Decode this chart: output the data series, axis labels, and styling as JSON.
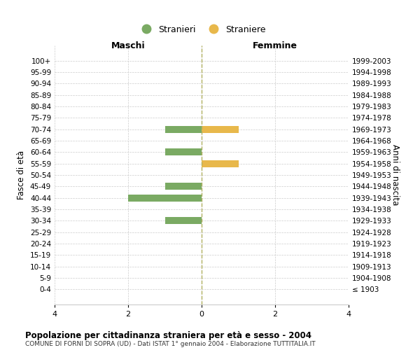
{
  "age_groups": [
    "100+",
    "95-99",
    "90-94",
    "85-89",
    "80-84",
    "75-79",
    "70-74",
    "65-69",
    "60-64",
    "55-59",
    "50-54",
    "45-49",
    "40-44",
    "35-39",
    "30-34",
    "25-29",
    "20-24",
    "15-19",
    "10-14",
    "5-9",
    "0-4"
  ],
  "birth_years": [
    "≤ 1903",
    "1904-1908",
    "1909-1913",
    "1914-1918",
    "1919-1923",
    "1924-1928",
    "1929-1933",
    "1934-1938",
    "1939-1943",
    "1944-1948",
    "1949-1953",
    "1954-1958",
    "1959-1963",
    "1964-1968",
    "1969-1973",
    "1974-1978",
    "1979-1983",
    "1984-1988",
    "1989-1993",
    "1994-1998",
    "1999-2003"
  ],
  "males": [
    0,
    0,
    0,
    0,
    0,
    0,
    -1,
    0,
    -1,
    0,
    0,
    -1,
    -2,
    0,
    -1,
    0,
    0,
    0,
    0,
    0,
    0
  ],
  "females": [
    0,
    0,
    0,
    0,
    0,
    0,
    1,
    0,
    0,
    1,
    0,
    0,
    0,
    0,
    0,
    0,
    0,
    0,
    0,
    0,
    0
  ],
  "male_color": "#7aaa63",
  "female_color": "#e8b84b",
  "background_color": "#ffffff",
  "grid_color": "#cccccc",
  "title": "Popolazione per cittadinanza straniera per età e sesso - 2004",
  "subtitle": "COMUNE DI FORNI DI SOPRA (UD) - Dati ISTAT 1° gennaio 2004 - Elaborazione TUTTITALIA.IT",
  "xlabel_left": "Maschi",
  "xlabel_right": "Femmine",
  "ylabel_left": "Fasce di età",
  "ylabel_right": "Anni di nascita",
  "legend_male": "Stranieri",
  "legend_female": "Straniere",
  "xlim": [
    -4,
    4
  ],
  "xticks": [
    -4,
    -2,
    0,
    2,
    4
  ],
  "xtick_labels": [
    "4",
    "2",
    "0",
    "2",
    "4"
  ]
}
